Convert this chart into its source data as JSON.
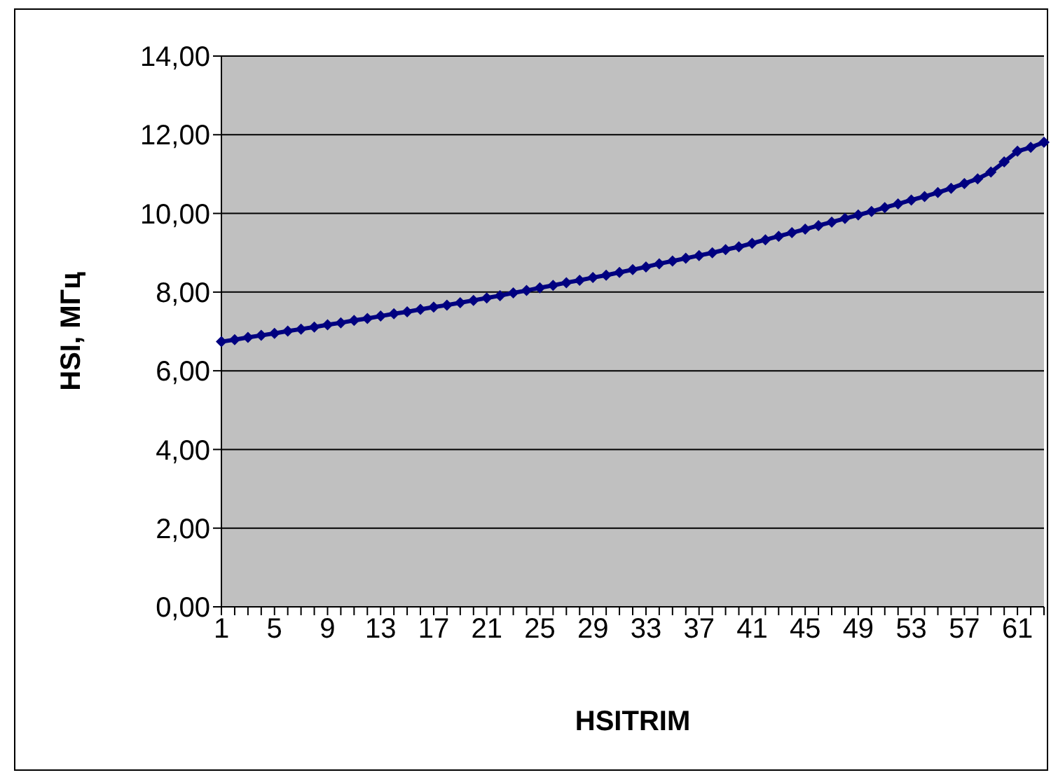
{
  "chart_data": {
    "type": "line",
    "xlabel": "HSITRIM",
    "ylabel": "HSI, МГц",
    "categories": [
      "1",
      null,
      null,
      null,
      "5",
      null,
      null,
      null,
      "9",
      null,
      null,
      null,
      "13",
      null,
      null,
      null,
      "17",
      null,
      null,
      null,
      "21",
      null,
      null,
      null,
      "25",
      null,
      null,
      null,
      "29",
      null,
      null,
      null,
      "33",
      null,
      null,
      null,
      "37",
      null,
      null,
      null,
      "41",
      null,
      null,
      null,
      "45",
      null,
      null,
      null,
      "49",
      null,
      null,
      null,
      "53",
      null,
      null,
      null,
      "57",
      null,
      null,
      null,
      "61",
      null,
      null
    ],
    "series": [
      {
        "color": "#000080",
        "values": [
          6.74,
          6.79,
          6.85,
          6.9,
          6.95,
          7.01,
          7.06,
          7.11,
          7.17,
          7.22,
          7.28,
          7.33,
          7.39,
          7.45,
          7.5,
          7.56,
          7.62,
          7.67,
          7.73,
          7.79,
          7.85,
          7.91,
          7.98,
          8.04,
          8.11,
          8.17,
          8.24,
          8.3,
          8.37,
          8.43,
          8.5,
          8.57,
          8.64,
          8.72,
          8.79,
          8.86,
          8.93,
          9.0,
          9.08,
          9.15,
          9.24,
          9.33,
          9.42,
          9.51,
          9.6,
          9.69,
          9.78,
          9.87,
          9.96,
          10.05,
          10.15,
          10.24,
          10.34,
          10.43,
          10.53,
          10.64,
          10.76,
          10.88,
          11.05,
          11.31,
          11.58,
          11.68,
          11.81
        ]
      }
    ],
    "ylim": [
      0,
      14
    ],
    "yticks": [
      {
        "value": 0,
        "label": "0,00"
      },
      {
        "value": 2,
        "label": "2,00"
      },
      {
        "value": 4,
        "label": "4,00"
      },
      {
        "value": 6,
        "label": "6,00"
      },
      {
        "value": 8,
        "label": "8,00"
      },
      {
        "value": 10,
        "label": "10,00"
      },
      {
        "value": 12,
        "label": "12,00"
      },
      {
        "value": 14,
        "label": "14,00"
      }
    ],
    "grid": "y",
    "legend": false,
    "marker": "diamond",
    "line_style": "solid"
  }
}
